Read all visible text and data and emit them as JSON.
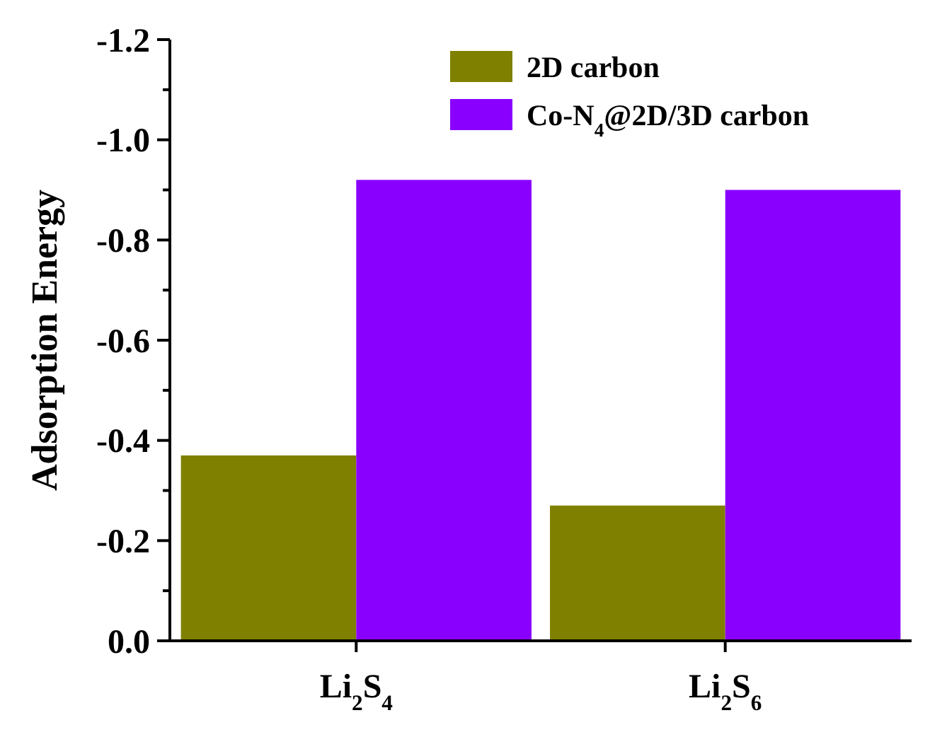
{
  "chart_data": {
    "type": "bar",
    "ylabel": "Adsorption Energy",
    "categories": [
      "Li$_{2}$S$_{4}$",
      "Li$_{2}$S$_{6}$"
    ],
    "series": [
      {
        "name": "2D carbon",
        "color": "#808000",
        "values": [
          -0.37,
          -0.27
        ]
      },
      {
        "name": "Co-N$_{4}$@2D/3D carbon",
        "color": "#8a00ff",
        "values": [
          -0.92,
          -0.9
        ]
      }
    ],
    "ylim": [
      0,
      -1.2
    ],
    "yticks": [
      {
        "value": 0,
        "label": "0.0"
      },
      {
        "value": -0.1,
        "label": null
      },
      {
        "value": -0.2,
        "label": "-0.2"
      },
      {
        "value": -0.3,
        "label": null
      },
      {
        "value": -0.4,
        "label": "-0.4"
      },
      {
        "value": -0.5,
        "label": null
      },
      {
        "value": -0.6,
        "label": "-0.6"
      },
      {
        "value": -0.7,
        "label": null
      },
      {
        "value": -0.8,
        "label": "-0.8"
      },
      {
        "value": -0.9,
        "label": null
      },
      {
        "value": -1.0,
        "label": "-1.0"
      },
      {
        "value": -1.1,
        "label": null
      },
      {
        "value": -1.2,
        "label": "-1.2"
      }
    ],
    "grid": false,
    "legend": "top right"
  }
}
